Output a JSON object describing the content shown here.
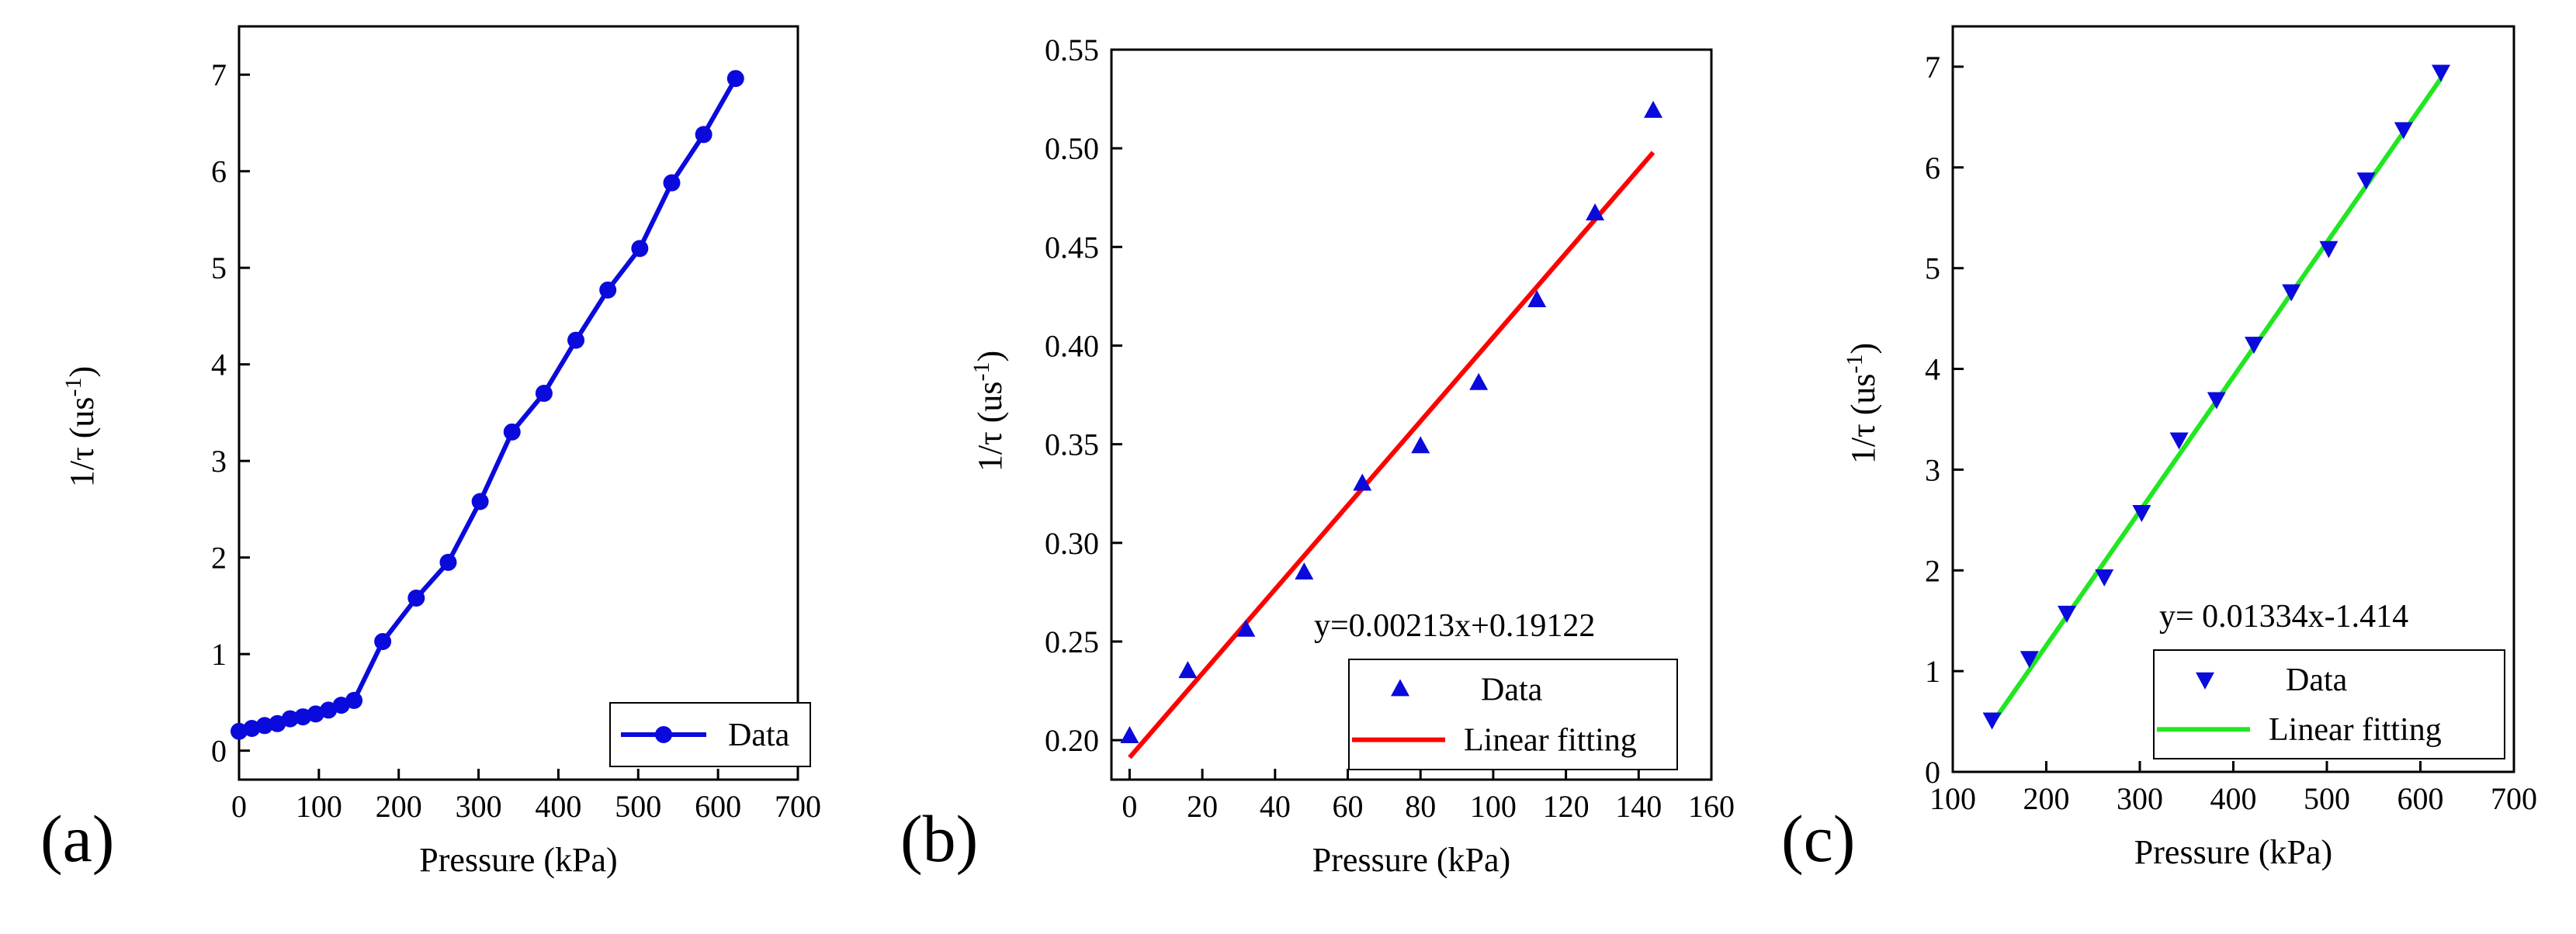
{
  "colors": {
    "blue": "#0a0adc",
    "red": "#ff0000",
    "green": "#22e622",
    "axis": "#000000"
  },
  "chart_data": [
    {
      "panel": "(a)",
      "type": "line",
      "xlabel": "Pressure (kPa)",
      "ylabel": "1/τ (us",
      "ylabel_sup": "-1",
      "ylabel_close": ")",
      "xlim": [
        0,
        700
      ],
      "ylim": [
        -0.3,
        7.5
      ],
      "xticks": [
        0,
        100,
        200,
        300,
        400,
        500,
        600,
        700
      ],
      "yticks": [
        0,
        1,
        2,
        3,
        4,
        5,
        6,
        7
      ],
      "tick_decimals": 0,
      "legend_position": "bottom-right",
      "series": [
        {
          "name": "Data",
          "marker": "circle",
          "color": "#0a0adc",
          "x": [
            0,
            16,
            32,
            48,
            64,
            80,
            96,
            112,
            128,
            144,
            180,
            222,
            262,
            302,
            342,
            382,
            422,
            462,
            502,
            542,
            582,
            622
          ],
          "y": [
            0.2,
            0.23,
            0.26,
            0.28,
            0.33,
            0.35,
            0.38,
            0.42,
            0.47,
            0.52,
            1.13,
            1.58,
            1.95,
            2.58,
            3.3,
            3.7,
            4.25,
            4.77,
            5.2,
            5.88,
            6.38,
            6.96
          ]
        }
      ]
    },
    {
      "panel": "(b)",
      "type": "scatter",
      "xlabel": "Pressure (kPa)",
      "ylabel": "1/τ (us",
      "ylabel_sup": "-1",
      "ylabel_close": ")",
      "xlim": [
        -5,
        160
      ],
      "ylim": [
        0.18,
        0.55
      ],
      "xticks": [
        0,
        20,
        40,
        60,
        80,
        100,
        120,
        140,
        160
      ],
      "yticks": [
        0.2,
        0.25,
        0.3,
        0.35,
        0.4,
        0.45,
        0.5,
        0.55
      ],
      "tick_decimals": 2,
      "annotation": "y=0.00213x+0.19122",
      "legend_position": "bottom-right",
      "series": [
        {
          "name": "Data",
          "marker": "triangle-up",
          "color": "#0a0adc",
          "x": [
            0,
            16,
            32,
            48,
            64,
            80,
            96,
            112,
            128,
            144
          ],
          "y": [
            0.202,
            0.235,
            0.256,
            0.285,
            0.33,
            0.349,
            0.381,
            0.423,
            0.467,
            0.519
          ]
        }
      ],
      "fit": {
        "name": "Linear fitting",
        "color": "#ff0000",
        "slope": 0.00213,
        "intercept": 0.19122,
        "x_range": [
          0,
          144
        ]
      }
    },
    {
      "panel": "(c)",
      "type": "scatter",
      "xlabel": "Pressure (kPa)",
      "ylabel": "1/τ (us",
      "ylabel_sup": "-1",
      "ylabel_close": ")",
      "xlim": [
        100,
        700
      ],
      "ylim": [
        0,
        7.4
      ],
      "xticks": [
        100,
        200,
        300,
        400,
        500,
        600,
        700
      ],
      "yticks": [
        0,
        1,
        2,
        3,
        4,
        5,
        6,
        7
      ],
      "tick_decimals": 0,
      "annotation": "y= 0.01334x-1.414",
      "legend_position": "bottom-right",
      "series": [
        {
          "name": "Data",
          "marker": "triangle-down",
          "color": "#0a0adc",
          "x": [
            142,
            182,
            222,
            262,
            302,
            342,
            382,
            422,
            462,
            502,
            542,
            582,
            622
          ],
          "y": [
            0.52,
            1.13,
            1.58,
            1.94,
            2.58,
            3.3,
            3.7,
            4.25,
            4.77,
            5.2,
            5.88,
            6.38,
            6.95
          ]
        }
      ],
      "fit": {
        "name": "Linear fitting",
        "color": "#22e622",
        "slope": 0.01334,
        "intercept": -1.414,
        "x_range": [
          142,
          622
        ]
      }
    }
  ]
}
